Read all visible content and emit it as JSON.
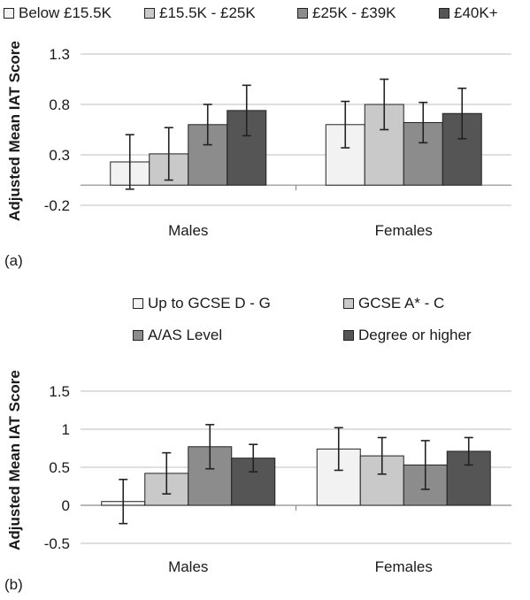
{
  "chart_data": [
    {
      "type": "bar",
      "panel_label": "(a)",
      "ylabel": "Adjusted Mean IAT Score",
      "categories": [
        "Males",
        "Females"
      ],
      "yticks": [
        1.3,
        0.8,
        0.3,
        -0.2
      ],
      "ylim": [
        -0.2,
        1.3
      ],
      "grid": true,
      "legend_position": "top",
      "series": [
        {
          "name": "Below £15.5K",
          "values": [
            0.23,
            0.6
          ],
          "err": [
            0.27,
            0.23
          ],
          "color": "#f2f2f2"
        },
        {
          "name": "£15.5K - £25K",
          "values": [
            0.31,
            0.8
          ],
          "err": [
            0.26,
            0.25
          ],
          "color": "#c9c9c9"
        },
        {
          "name": "£25K - £39K",
          "values": [
            0.6,
            0.62
          ],
          "err": [
            0.2,
            0.2
          ],
          "color": "#8c8c8c"
        },
        {
          "name": "£40K+",
          "values": [
            0.74,
            0.71
          ],
          "err": [
            0.25,
            0.25
          ],
          "color": "#555555"
        }
      ]
    },
    {
      "type": "bar",
      "panel_label": "(b)",
      "ylabel": "Adjusted Mean IAT Score",
      "categories": [
        "Males",
        "Females"
      ],
      "yticks": [
        1.5,
        1,
        0.5,
        0,
        -0.5
      ],
      "ylim": [
        -0.5,
        1.5
      ],
      "grid": true,
      "legend_position": "top",
      "series": [
        {
          "name": "Up to GCSE D - G",
          "values": [
            0.05,
            0.74
          ],
          "err": [
            0.29,
            0.28
          ],
          "color": "#f2f2f2"
        },
        {
          "name": "GCSE A* - C",
          "values": [
            0.42,
            0.65
          ],
          "err": [
            0.27,
            0.24
          ],
          "color": "#c9c9c9"
        },
        {
          "name": "A/AS Level",
          "values": [
            0.77,
            0.53
          ],
          "err": [
            0.29,
            0.32
          ],
          "color": "#8c8c8c"
        },
        {
          "name": "Degree or higher",
          "values": [
            0.62,
            0.71
          ],
          "err": [
            0.18,
            0.18
          ],
          "color": "#555555"
        }
      ]
    }
  ]
}
